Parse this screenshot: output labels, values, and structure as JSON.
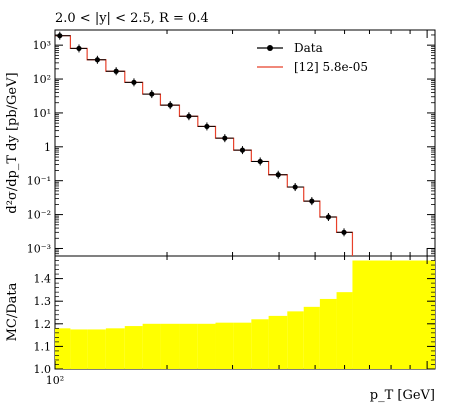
{
  "chart_data": [
    {
      "type": "line",
      "panel": "main",
      "title": "2.0 < |y| < 2.5, R = 0.4",
      "xlabel": "",
      "ylabel": "d²σ/dp_T dy [pb/GeV]",
      "x_scale": "log",
      "y_scale": "log",
      "xlim": [
        100,
        1050
      ],
      "ylim": [
        0.0006,
        2800
      ],
      "y_tick_labels": [
        "10⁻³",
        "10⁻²",
        "10⁻¹",
        "1",
        "10¹",
        "10²",
        "10³"
      ],
      "y_tick_values": [
        0.001,
        0.01,
        0.1,
        1,
        10,
        100,
        1000
      ],
      "legend_position": "top-right",
      "series": [
        {
          "name": "Data",
          "style": "points-with-errors",
          "color": "#000000",
          "x": [
            103,
            116,
            130,
            146,
            163,
            182,
            204,
            229,
            256,
            286,
            319,
            356,
            398,
            442,
            490,
            543,
            598
          ],
          "y": [
            1900,
            800,
            370,
            170,
            80,
            36,
            17,
            8,
            4,
            1.8,
            0.8,
            0.37,
            0.15,
            0.065,
            0.025,
            0.0085,
            0.003
          ]
        },
        {
          "name": "[12] 5.8e-05",
          "style": "histogram-step",
          "color": "#e8402a",
          "bin_edges": [
            97,
            110,
            122,
            137,
            154,
            172,
            192,
            216,
            242,
            270,
            302,
            337,
            375,
            421,
            466,
            515,
            571,
            630
          ],
          "values": [
            1900,
            800,
            370,
            170,
            80,
            36,
            17,
            8,
            4,
            1.8,
            0.8,
            0.37,
            0.15,
            0.065,
            0.025,
            0.0085,
            0.003
          ]
        }
      ]
    },
    {
      "type": "area",
      "panel": "ratio",
      "ylabel": "MC/Data",
      "xlabel": "p_T [GeV]",
      "x_scale": "log",
      "xlim": [
        100,
        1050
      ],
      "ylim": [
        1.0,
        1.5
      ],
      "x_tick_labels": [
        "10²"
      ],
      "x_tick_values": [
        100
      ],
      "y_tick_labels": [
        "1.0",
        "1.1",
        "1.2",
        "1.3",
        "1.4"
      ],
      "y_tick_values": [
        1.0,
        1.1,
        1.2,
        1.3,
        1.4
      ],
      "fill_color": "#ffff00",
      "series": [
        {
          "name": "",
          "bin_edges": [
            97,
            110,
            122,
            137,
            154,
            172,
            192,
            216,
            242,
            270,
            302,
            337,
            375,
            421,
            466,
            515,
            571,
            630,
            1050
          ],
          "values": [
            1.18,
            1.175,
            1.175,
            1.18,
            1.19,
            1.2,
            1.2,
            1.2,
            1.2,
            1.205,
            1.205,
            1.22,
            1.235,
            1.255,
            1.275,
            1.31,
            1.34,
            1.48
          ]
        }
      ]
    }
  ]
}
